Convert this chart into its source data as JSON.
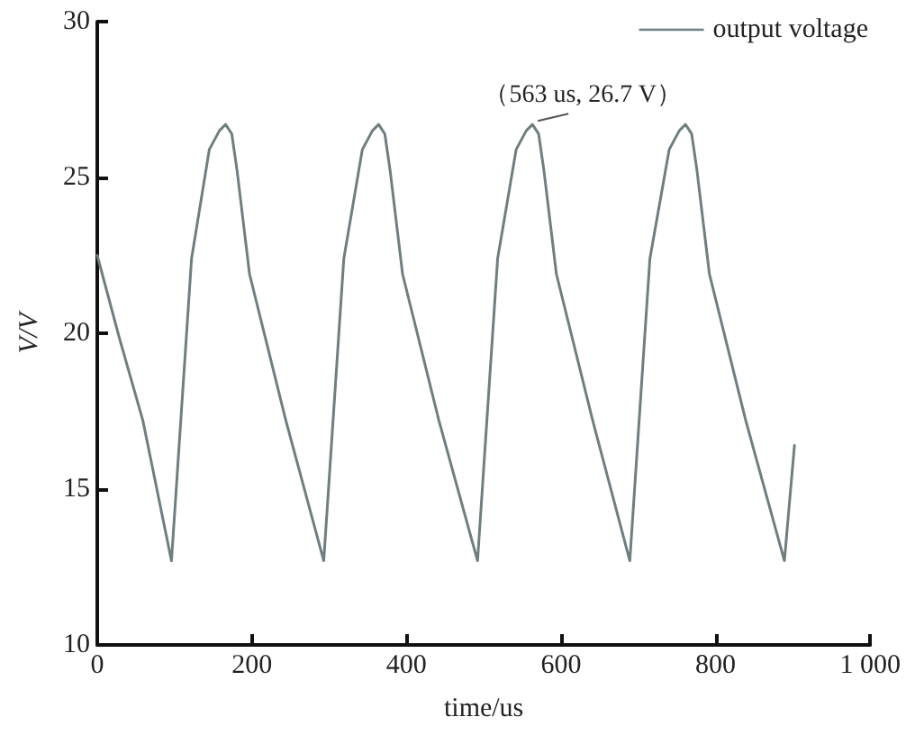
{
  "chart_data": {
    "type": "line",
    "xlabel": "time/us",
    "ylabel": "V/V",
    "xlim": [
      0,
      1000
    ],
    "xticks": [
      0,
      200,
      400,
      600,
      800,
      {
        "value": 1000,
        "label": "1 000"
      }
    ],
    "ylim": [
      10,
      30
    ],
    "yticks": [
      10,
      15,
      20,
      25,
      30
    ],
    "grid": false,
    "legend": "top right",
    "marker": "none",
    "line_style": "solid",
    "annotations": [
      {
        "text": "（563 us, 26.7 V）",
        "x": 563,
        "y": 26.7
      }
    ],
    "series": [
      {
        "name": "output voltage",
        "color": "#6e7f80",
        "x": [
          0,
          28,
          59,
          96,
          122,
          145,
          158,
          166,
          174,
          181,
          197,
          244,
          293,
          319,
          343,
          356,
          364,
          372,
          379,
          395,
          442,
          492,
          518,
          542,
          555,
          563,
          571,
          578,
          594,
          641,
          689,
          715,
          740,
          753,
          761,
          769,
          776,
          792,
          839,
          889,
          902
        ],
        "values": [
          22.5,
          19.9,
          17.2,
          12.7,
          22.4,
          25.9,
          26.5,
          26.7,
          26.4,
          25.2,
          21.9,
          17.2,
          12.7,
          22.4,
          25.9,
          26.5,
          26.7,
          26.4,
          25.2,
          21.9,
          17.2,
          12.7,
          22.4,
          25.9,
          26.5,
          26.7,
          26.4,
          25.2,
          21.9,
          17.2,
          12.7,
          22.4,
          25.9,
          26.5,
          26.7,
          26.4,
          25.2,
          21.9,
          17.2,
          12.7,
          16.4
        ]
      }
    ]
  }
}
